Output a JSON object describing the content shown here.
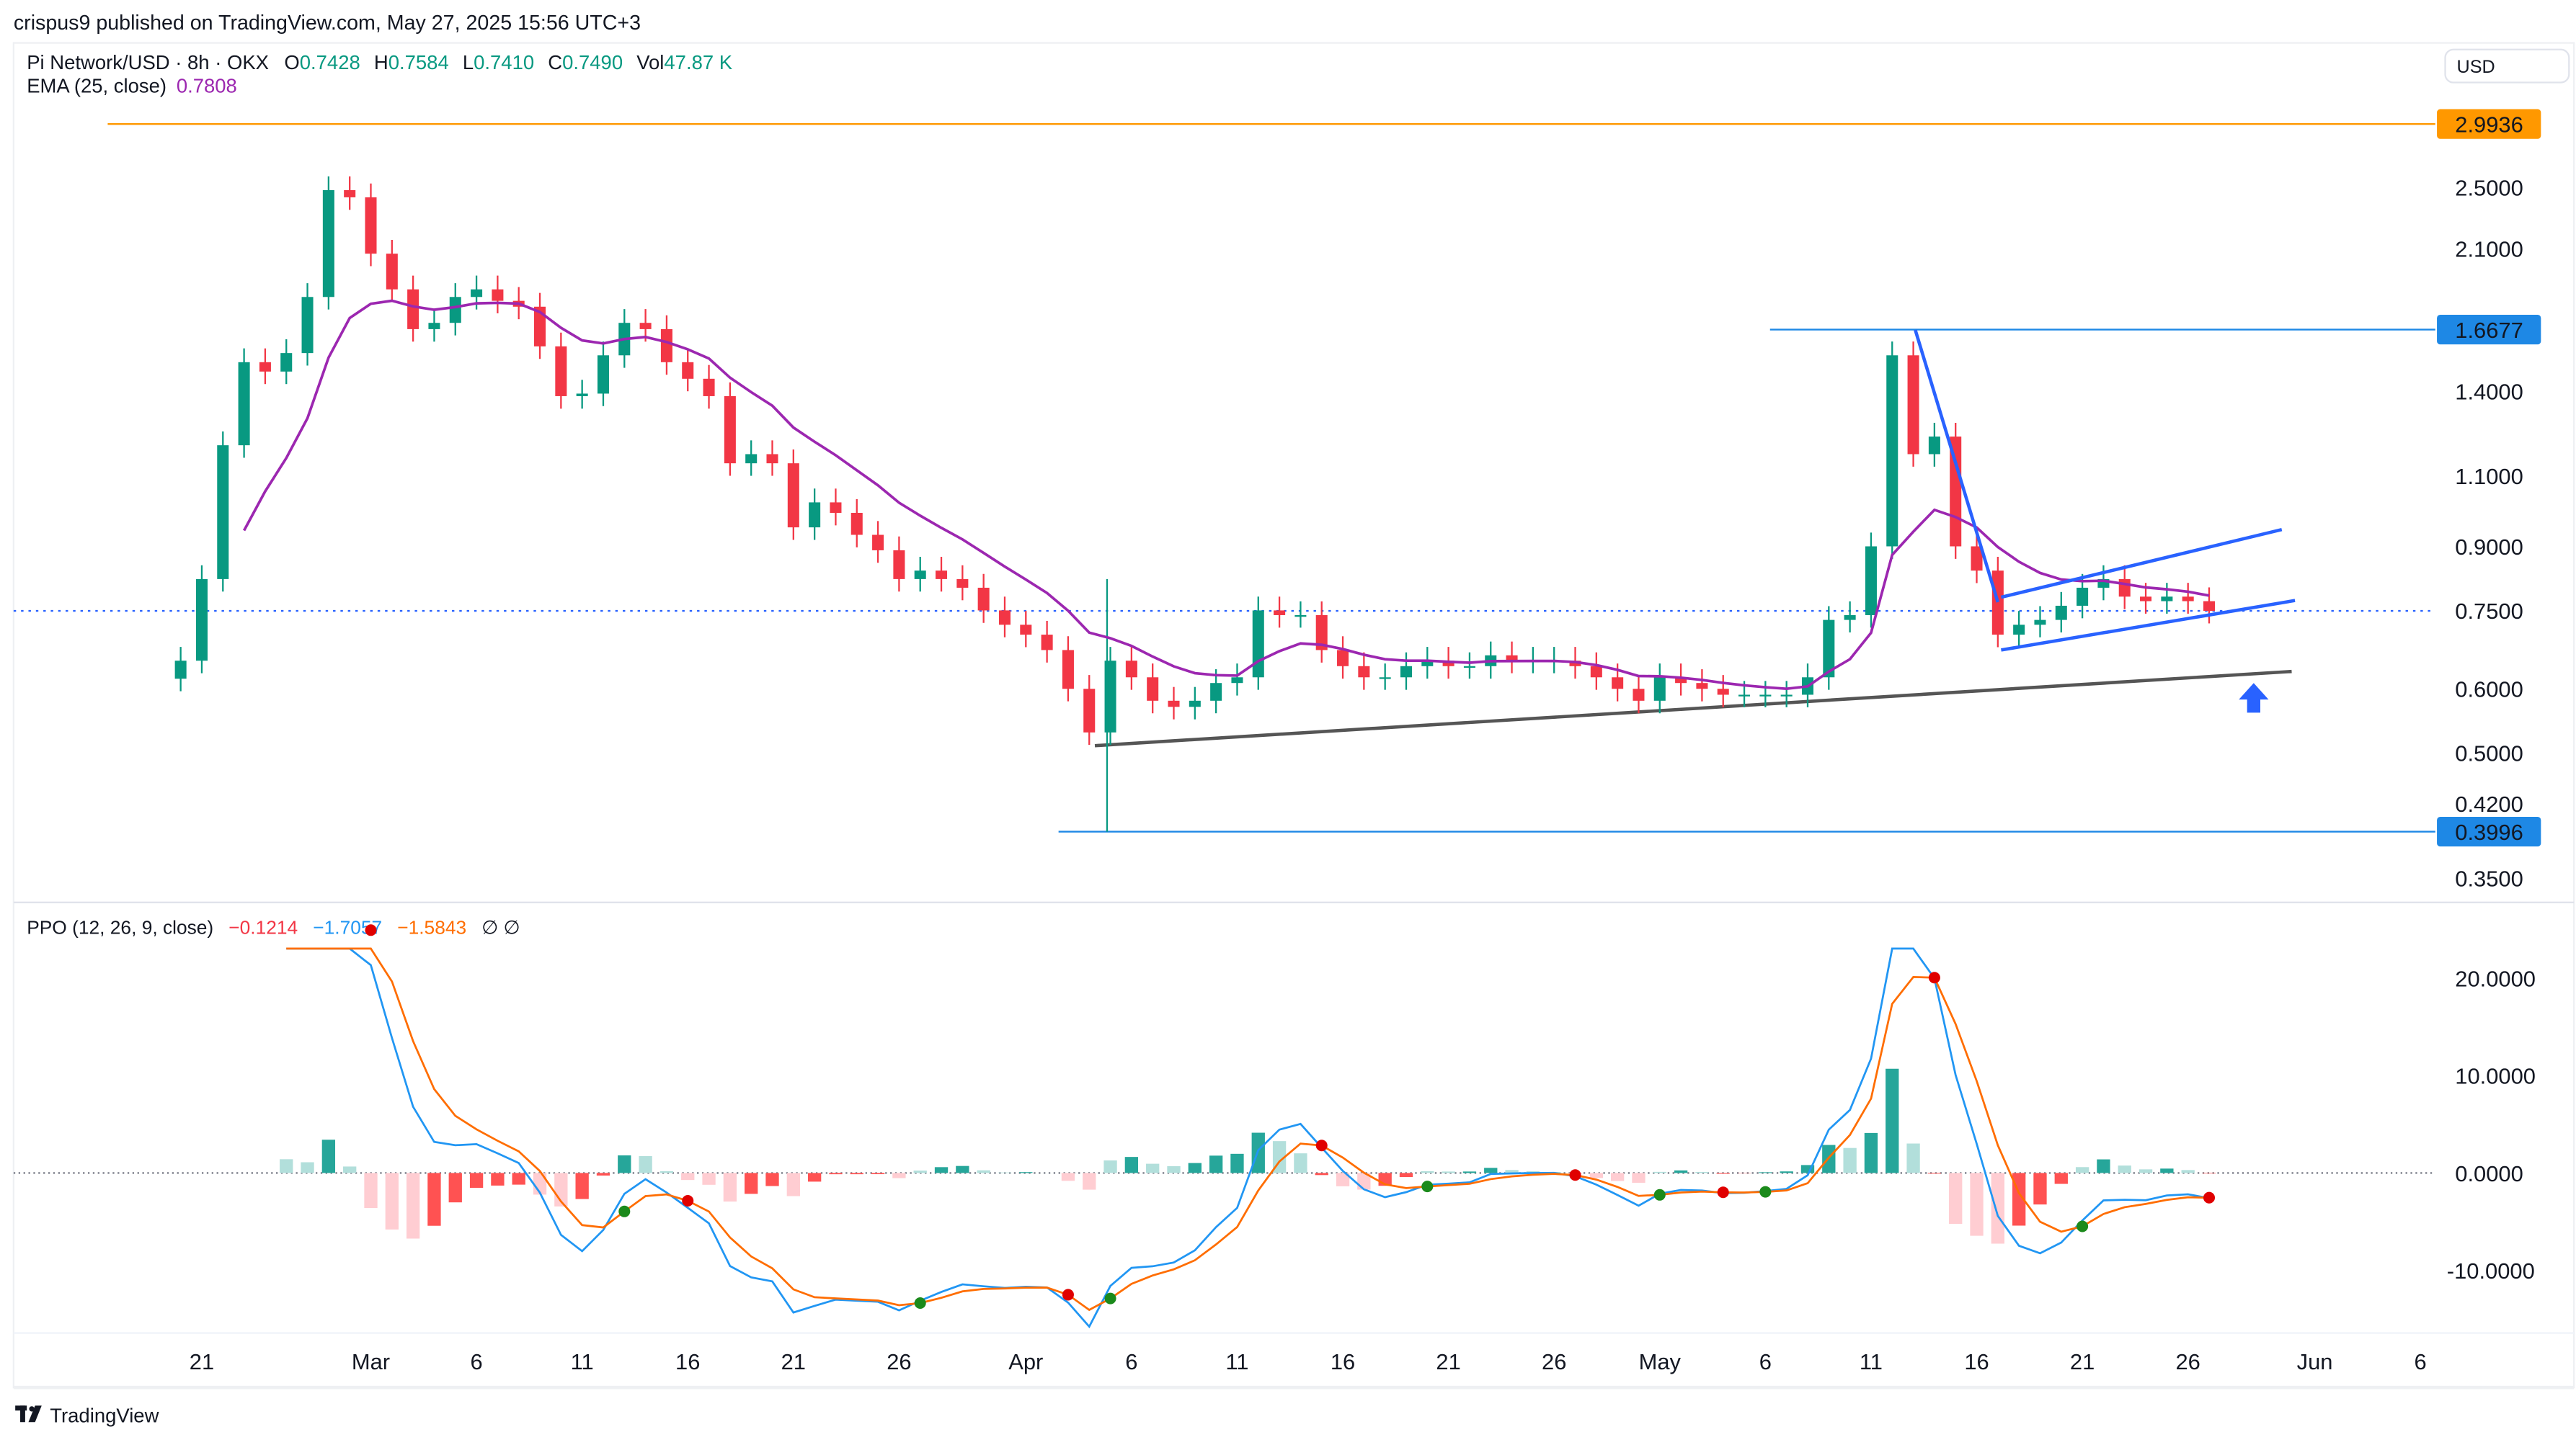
{
  "header": {
    "published": "crispus9 published on TradingView.com, May 27, 2025 15:56 UTC+3"
  },
  "legend": {
    "symbol": "Pi Network/USD · 8h · OKX",
    "o_label": "O",
    "o": "0.7428",
    "h_label": "H",
    "h": "0.7584",
    "l_label": "L",
    "l": "0.7410",
    "c_label": "C",
    "c": "0.7490",
    "vol_label": "Vol",
    "vol": "47.87 K",
    "ema_label": "EMA (25, close)",
    "ema": "0.7808"
  },
  "ppo_legend": {
    "label": "PPO (12, 26, 9, close)",
    "hist": "−0.1214",
    "ppo": "−1.7057",
    "signal": "−1.5843",
    "icons": "∅  ∅"
  },
  "currency_button": "USD",
  "footer": {
    "logo_text": "TradingView"
  },
  "colors": {
    "up": "#089981",
    "down": "#F23645",
    "ema": "#9C27B0",
    "drawing": "#2962FF",
    "orange_level": "#FF9800",
    "level_blue": "#1E88E5",
    "ppo": "#2196F3",
    "signal": "#FF6D00",
    "trendline": "#555555"
  },
  "chart_data": [
    {
      "type": "candlestick",
      "scale": "log",
      "ylim": [
        0.33,
        3.05
      ],
      "y_ticks": [
        "2.5000",
        "2.1000",
        "1.4000",
        "1.1000",
        "0.9000",
        "0.7500",
        "0.6000",
        "0.5000",
        "0.4200",
        "0.3500"
      ],
      "price_labels": [
        {
          "value": "2.9936",
          "color": "#FF9800"
        },
        {
          "value": "1.6677",
          "color": "#1E88E5"
        },
        {
          "value": "0.3996",
          "color": "#1E88E5"
        }
      ],
      "current_price": 0.749,
      "x_ticks": [
        {
          "label": "21",
          "date": "2025-02-21"
        },
        {
          "label": "Mar",
          "date": "2025-03-01"
        },
        {
          "label": "6",
          "date": "2025-03-06"
        },
        {
          "label": "11",
          "date": "2025-03-11"
        },
        {
          "label": "16",
          "date": "2025-03-16"
        },
        {
          "label": "21",
          "date": "2025-03-21"
        },
        {
          "label": "26",
          "date": "2025-03-26"
        },
        {
          "label": "Apr",
          "date": "2025-04-01"
        },
        {
          "label": "6",
          "date": "2025-04-06"
        },
        {
          "label": "11",
          "date": "2025-04-11"
        },
        {
          "label": "16",
          "date": "2025-04-16"
        },
        {
          "label": "21",
          "date": "2025-04-21"
        },
        {
          "label": "26",
          "date": "2025-04-26"
        },
        {
          "label": "May",
          "date": "2025-05-01"
        },
        {
          "label": "6",
          "date": "2025-05-06"
        },
        {
          "label": "11",
          "date": "2025-05-11"
        },
        {
          "label": "16",
          "date": "2025-05-16"
        },
        {
          "label": "21",
          "date": "2025-05-21"
        },
        {
          "label": "26",
          "date": "2025-05-26"
        },
        {
          "label": "Jun",
          "date": "2025-06-01"
        },
        {
          "label": "6",
          "date": "2025-06-06"
        }
      ],
      "closes": [
        [
          "2025-02-20",
          0.65
        ],
        [
          "2025-02-21",
          0.82
        ],
        [
          "2025-02-22",
          1.2
        ],
        [
          "2025-02-23",
          1.52
        ],
        [
          "2025-02-24",
          1.48
        ],
        [
          "2025-02-25",
          1.56
        ],
        [
          "2025-02-26",
          1.83
        ],
        [
          "2025-02-27",
          2.48
        ],
        [
          "2025-02-28",
          2.43
        ],
        [
          "2025-03-01",
          2.07
        ],
        [
          "2025-03-02",
          1.87
        ],
        [
          "2025-03-03",
          1.67
        ],
        [
          "2025-03-04",
          1.7
        ],
        [
          "2025-03-05",
          1.83
        ],
        [
          "2025-03-06",
          1.87
        ],
        [
          "2025-03-07",
          1.81
        ],
        [
          "2025-03-08",
          1.78
        ],
        [
          "2025-03-09",
          1.59
        ],
        [
          "2025-03-10",
          1.38
        ],
        [
          "2025-03-11",
          1.39
        ],
        [
          "2025-03-12",
          1.55
        ],
        [
          "2025-03-13",
          1.7
        ],
        [
          "2025-03-14",
          1.67
        ],
        [
          "2025-03-15",
          1.52
        ],
        [
          "2025-03-16",
          1.45
        ],
        [
          "2025-03-17",
          1.38
        ],
        [
          "2025-03-18",
          1.14
        ],
        [
          "2025-03-19",
          1.17
        ],
        [
          "2025-03-20",
          1.14
        ],
        [
          "2025-03-21",
          0.95
        ],
        [
          "2025-03-22",
          1.02
        ],
        [
          "2025-03-23",
          0.99
        ],
        [
          "2025-03-24",
          0.93
        ],
        [
          "2025-03-25",
          0.89
        ],
        [
          "2025-03-26",
          0.82
        ],
        [
          "2025-03-27",
          0.84
        ],
        [
          "2025-03-28",
          0.82
        ],
        [
          "2025-03-29",
          0.8
        ],
        [
          "2025-03-30",
          0.75
        ],
        [
          "2025-03-31",
          0.72
        ],
        [
          "2025-04-01",
          0.7
        ],
        [
          "2025-04-02",
          0.67
        ],
        [
          "2025-04-03",
          0.6
        ],
        [
          "2025-04-04",
          0.53
        ],
        [
          "2025-04-05",
          0.65
        ],
        [
          "2025-04-06",
          0.62
        ],
        [
          "2025-04-07",
          0.58
        ],
        [
          "2025-04-08",
          0.57
        ],
        [
          "2025-04-09",
          0.58
        ],
        [
          "2025-04-10",
          0.61
        ],
        [
          "2025-04-11",
          0.62
        ],
        [
          "2025-04-12",
          0.75
        ],
        [
          "2025-04-13",
          0.74
        ],
        [
          "2025-04-14",
          0.74
        ],
        [
          "2025-04-15",
          0.67
        ],
        [
          "2025-04-16",
          0.64
        ],
        [
          "2025-04-17",
          0.62
        ],
        [
          "2025-04-18",
          0.62
        ],
        [
          "2025-04-19",
          0.64
        ],
        [
          "2025-04-20",
          0.65
        ],
        [
          "2025-04-21",
          0.64
        ],
        [
          "2025-04-22",
          0.64
        ],
        [
          "2025-04-23",
          0.66
        ],
        [
          "2025-04-24",
          0.65
        ],
        [
          "2025-04-25",
          0.65
        ],
        [
          "2025-04-26",
          0.65
        ],
        [
          "2025-04-27",
          0.64
        ],
        [
          "2025-04-28",
          0.62
        ],
        [
          "2025-04-29",
          0.6
        ],
        [
          "2025-04-30",
          0.58
        ],
        [
          "2025-05-01",
          0.62
        ],
        [
          "2025-05-02",
          0.61
        ],
        [
          "2025-05-03",
          0.6
        ],
        [
          "2025-05-04",
          0.59
        ],
        [
          "2025-05-05",
          0.59
        ],
        [
          "2025-05-06",
          0.59
        ],
        [
          "2025-05-07",
          0.59
        ],
        [
          "2025-05-08",
          0.62
        ],
        [
          "2025-05-09",
          0.73
        ],
        [
          "2025-05-10",
          0.74
        ],
        [
          "2025-05-11",
          0.9
        ],
        [
          "2025-05-12",
          1.55
        ],
        [
          "2025-05-13",
          1.17
        ],
        [
          "2025-05-14",
          1.23
        ],
        [
          "2025-05-15",
          0.9
        ],
        [
          "2025-05-16",
          0.84
        ],
        [
          "2025-05-17",
          0.7
        ],
        [
          "2025-05-18",
          0.72
        ],
        [
          "2025-05-19",
          0.73
        ],
        [
          "2025-05-20",
          0.76
        ],
        [
          "2025-05-21",
          0.8
        ],
        [
          "2025-05-22",
          0.82
        ],
        [
          "2025-05-23",
          0.78
        ],
        [
          "2025-05-24",
          0.77
        ],
        [
          "2025-05-25",
          0.78
        ],
        [
          "2025-05-26",
          0.77
        ],
        [
          "2025-05-27",
          0.749
        ]
      ],
      "series": [
        {
          "name": "EMA (25, close)"
        }
      ]
    },
    {
      "type": "line",
      "name": "PPO (12, 26, 9, close)",
      "ylim": [
        -13,
        26
      ],
      "y_ticks": [
        "20.0000",
        "10.0000",
        "0.0000",
        "-10.0000"
      ],
      "series": [
        {
          "name": "PPO"
        },
        {
          "name": "Signal"
        },
        {
          "name": "Histogram"
        }
      ]
    }
  ]
}
